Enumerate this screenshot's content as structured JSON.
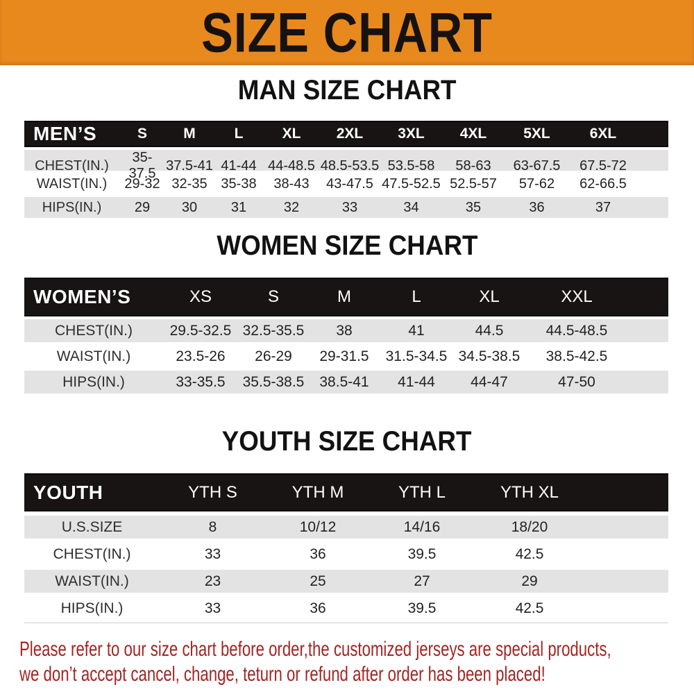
{
  "colors": {
    "banner_bg": "#E8891E",
    "table_header_bg": "#181414",
    "row_alt_bg": "#E3E3E3",
    "footer_text": "#A32522"
  },
  "banner": {
    "title": "SIZE CHART"
  },
  "men": {
    "section_title": "MAN SIZE CHART",
    "header": [
      "MEN’S",
      "S",
      "M",
      "L",
      "XL",
      "2XL",
      "3XL",
      "4XL",
      "5XL",
      "6XL"
    ],
    "rows": [
      {
        "label": "CHEST(IN.)",
        "values": [
          "35-37.5",
          "37.5-41",
          "41-44",
          "44-48.5",
          "48.5-53.5",
          "53.5-58",
          "58-63",
          "63-67.5",
          "67.5-72"
        ]
      },
      {
        "label": "WAIST(IN.)",
        "values": [
          "29-32",
          "32-35",
          "35-38",
          "38-43",
          "43-47.5",
          "47.5-52.5",
          "52.5-57",
          "57-62",
          "62-66.5"
        ]
      },
      {
        "label": "HIPS(IN.)",
        "values": [
          "29",
          "30",
          "31",
          "32",
          "33",
          "34",
          "35",
          "36",
          "37"
        ]
      }
    ]
  },
  "women": {
    "section_title": "WOMEN SIZE CHART",
    "header": [
      "WOMEN’S",
      "XS",
      "S",
      "M",
      "L",
      "XL",
      "XXL"
    ],
    "rows": [
      {
        "label": "CHEST(IN.)",
        "values": [
          "29.5-32.5",
          "32.5-35.5",
          "38",
          "41",
          "44.5",
          "44.5-48.5"
        ]
      },
      {
        "label": "WAIST(IN.)",
        "values": [
          "23.5-26",
          "26-29",
          "29-31.5",
          "31.5-34.5",
          "34.5-38.5",
          "38.5-42.5"
        ]
      },
      {
        "label": "HIPS(IN.)",
        "values": [
          "33-35.5",
          "35.5-38.5",
          "38.5-41",
          "41-44",
          "44-47",
          "47-50"
        ]
      }
    ]
  },
  "youth": {
    "section_title": "YOUTH SIZE CHART",
    "header": [
      "YOUTH",
      "YTH S",
      "YTH M",
      "YTH L",
      "YTH XL"
    ],
    "rows": [
      {
        "label": "U.S.SIZE",
        "values": [
          "8",
          "10/12",
          "14/16",
          "18/20"
        ]
      },
      {
        "label": "CHEST(IN.)",
        "values": [
          "33",
          "36",
          "39.5",
          "42.5"
        ]
      },
      {
        "label": "WAIST(IN.)",
        "values": [
          "23",
          "25",
          "27",
          "29"
        ]
      },
      {
        "label": "HIPS(IN.)",
        "values": [
          "33",
          "36",
          "39.5",
          "42.5"
        ]
      }
    ]
  },
  "footer": {
    "line1": "Please refer to our size chart before order,the customized jerseys are special products,",
    "line2": "we don’t accept cancel, change, teturn or refund after order has been placed!"
  }
}
